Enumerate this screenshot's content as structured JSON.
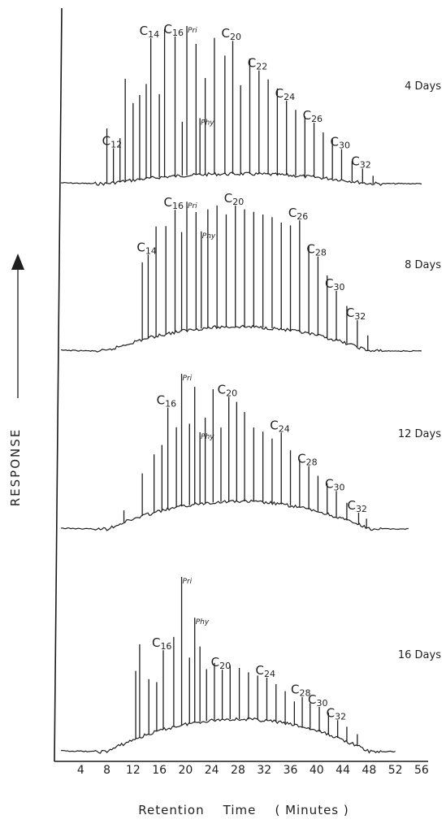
{
  "chart_data": {
    "type": "line",
    "xlabel": "Retention    Time    ( Minutes )",
    "ylabel": "RESPONSE",
    "xlim": [
      0,
      57
    ],
    "x_ticks": [
      4,
      8,
      12,
      16,
      20,
      24,
      28,
      32,
      36,
      40,
      44,
      48,
      52,
      56
    ],
    "panels": [
      {
        "name": "4 Days",
        "peaks": [
          {
            "t": 8.0,
            "h": 0.35
          },
          {
            "t": 9.0,
            "h": 0.22,
            "label": "C12",
            "label_num": "12"
          },
          {
            "t": 10.0,
            "h": 0.28
          },
          {
            "t": 10.8,
            "h": 0.66
          },
          {
            "t": 12.0,
            "h": 0.5
          },
          {
            "t": 13.0,
            "h": 0.55
          },
          {
            "t": 14.0,
            "h": 0.62
          },
          {
            "t": 14.7,
            "h": 0.92,
            "label": "C14",
            "label_num": "14"
          },
          {
            "t": 16.0,
            "h": 0.55
          },
          {
            "t": 16.8,
            "h": 0.98
          },
          {
            "t": 18.4,
            "h": 0.93,
            "label": "C16",
            "label_num": "16"
          },
          {
            "t": 19.5,
            "h": 0.36
          },
          {
            "t": 20.2,
            "h": 1.0,
            "label": "Pri",
            "small": true
          },
          {
            "t": 21.6,
            "h": 0.88
          },
          {
            "t": 22.2,
            "h": 0.38,
            "label": "Phy",
            "small": true
          },
          {
            "t": 23.0,
            "h": 0.65
          },
          {
            "t": 24.4,
            "h": 0.92
          },
          {
            "t": 26.0,
            "h": 0.8
          },
          {
            "t": 27.2,
            "h": 0.9,
            "label": "C20",
            "label_num": "20"
          },
          {
            "t": 28.4,
            "h": 0.6
          },
          {
            "t": 29.8,
            "h": 0.78
          },
          {
            "t": 31.2,
            "h": 0.7,
            "label": "C22",
            "label_num": "22"
          },
          {
            "t": 32.6,
            "h": 0.64
          },
          {
            "t": 34.0,
            "h": 0.58
          },
          {
            "t": 35.4,
            "h": 0.5,
            "label": "C24",
            "label_num": "24"
          },
          {
            "t": 36.8,
            "h": 0.44
          },
          {
            "t": 38.2,
            "h": 0.4
          },
          {
            "t": 39.6,
            "h": 0.36,
            "label": "C26",
            "label_num": "26"
          },
          {
            "t": 41.0,
            "h": 0.3
          },
          {
            "t": 42.4,
            "h": 0.26
          },
          {
            "t": 43.8,
            "h": 0.2,
            "label": "C30",
            "label_num": "30"
          },
          {
            "t": 45.4,
            "h": 0.13
          },
          {
            "t": 47.0,
            "h": 0.09,
            "label": "C32",
            "label_num": "32"
          },
          {
            "t": 48.6,
            "h": 0.05
          }
        ]
      },
      {
        "name": "8 Days",
        "peaks": [
          {
            "t": 13.4,
            "h": 0.55
          },
          {
            "t": 14.3,
            "h": 0.6,
            "label": "C14",
            "label_num": "14"
          },
          {
            "t": 15.5,
            "h": 0.8
          },
          {
            "t": 17.0,
            "h": 0.8
          },
          {
            "t": 18.4,
            "h": 0.92,
            "label": "C16",
            "label_num": "16"
          },
          {
            "t": 19.4,
            "h": 0.75
          },
          {
            "t": 20.2,
            "h": 0.98,
            "label": "Pri",
            "small": true
          },
          {
            "t": 21.6,
            "h": 0.9
          },
          {
            "t": 22.4,
            "h": 0.75,
            "label": "Phy",
            "small": true
          },
          {
            "t": 23.4,
            "h": 0.92
          },
          {
            "t": 24.8,
            "h": 0.95
          },
          {
            "t": 26.2,
            "h": 0.88
          },
          {
            "t": 27.6,
            "h": 0.95,
            "label": "C20",
            "label_num": "20"
          },
          {
            "t": 29.0,
            "h": 0.92
          },
          {
            "t": 30.4,
            "h": 0.9
          },
          {
            "t": 31.8,
            "h": 0.88
          },
          {
            "t": 33.2,
            "h": 0.86
          },
          {
            "t": 34.6,
            "h": 0.82
          },
          {
            "t": 36.0,
            "h": 0.8
          },
          {
            "t": 37.4,
            "h": 0.84,
            "label": "C26",
            "label_num": "26"
          },
          {
            "t": 38.8,
            "h": 0.65
          },
          {
            "t": 40.2,
            "h": 0.58,
            "label": "C28",
            "label_num": "28"
          },
          {
            "t": 41.6,
            "h": 0.45
          },
          {
            "t": 43.0,
            "h": 0.35,
            "label": "C30",
            "label_num": "30"
          },
          {
            "t": 44.6,
            "h": 0.26
          },
          {
            "t": 46.2,
            "h": 0.18,
            "label": "C32",
            "label_num": "32"
          },
          {
            "t": 47.8,
            "h": 0.1
          }
        ]
      },
      {
        "name": "12 Days",
        "peaks": [
          {
            "t": 10.6,
            "h": 0.08
          },
          {
            "t": 13.4,
            "h": 0.3
          },
          {
            "t": 15.2,
            "h": 0.42
          },
          {
            "t": 16.4,
            "h": 0.48
          },
          {
            "t": 17.3,
            "h": 0.75,
            "label": "C16",
            "label_num": "16"
          },
          {
            "t": 18.6,
            "h": 0.6
          },
          {
            "t": 19.4,
            "h": 1.0,
            "label": "Pri",
            "small": true
          },
          {
            "t": 20.6,
            "h": 0.62
          },
          {
            "t": 21.4,
            "h": 0.9
          },
          {
            "t": 22.2,
            "h": 0.55,
            "label": "Phy",
            "small": true
          },
          {
            "t": 23.0,
            "h": 0.66
          },
          {
            "t": 24.2,
            "h": 0.88
          },
          {
            "t": 25.4,
            "h": 0.58
          },
          {
            "t": 26.6,
            "h": 0.82,
            "label": "C20",
            "label_num": "20"
          },
          {
            "t": 27.8,
            "h": 0.78
          },
          {
            "t": 29.0,
            "h": 0.7
          },
          {
            "t": 30.4,
            "h": 0.58
          },
          {
            "t": 31.8,
            "h": 0.55
          },
          {
            "t": 33.2,
            "h": 0.5
          },
          {
            "t": 34.6,
            "h": 0.55,
            "label": "C24",
            "label_num": "24"
          },
          {
            "t": 36.0,
            "h": 0.42
          },
          {
            "t": 37.4,
            "h": 0.36
          },
          {
            "t": 38.8,
            "h": 0.32,
            "label": "C28",
            "label_num": "28"
          },
          {
            "t": 40.2,
            "h": 0.26
          },
          {
            "t": 41.6,
            "h": 0.22
          },
          {
            "t": 43.0,
            "h": 0.18,
            "label": "C30",
            "label_num": "30"
          },
          {
            "t": 44.6,
            "h": 0.12
          },
          {
            "t": 46.4,
            "h": 0.08,
            "label": "C32",
            "label_num": "32"
          },
          {
            "t": 47.6,
            "h": 0.06
          }
        ]
      },
      {
        "name": "16 Days",
        "peaks": [
          {
            "t": 12.4,
            "h": 0.42
          },
          {
            "t": 13.0,
            "h": 0.58
          },
          {
            "t": 14.4,
            "h": 0.35
          },
          {
            "t": 15.6,
            "h": 0.32
          },
          {
            "t": 16.6,
            "h": 0.52,
            "label": "C16",
            "label_num": "16"
          },
          {
            "t": 18.2,
            "h": 0.6
          },
          {
            "t": 19.4,
            "h": 1.0,
            "label": "Pri",
            "small": true
          },
          {
            "t": 20.6,
            "h": 0.45
          },
          {
            "t": 21.4,
            "h": 0.72,
            "label": "Phy",
            "small": true
          },
          {
            "t": 22.2,
            "h": 0.52
          },
          {
            "t": 23.2,
            "h": 0.36
          },
          {
            "t": 24.4,
            "h": 0.4
          },
          {
            "t": 25.6,
            "h": 0.35,
            "label": "C20",
            "label_num": "20"
          },
          {
            "t": 26.8,
            "h": 0.38
          },
          {
            "t": 28.2,
            "h": 0.36
          },
          {
            "t": 29.6,
            "h": 0.33
          },
          {
            "t": 31.0,
            "h": 0.31
          },
          {
            "t": 32.4,
            "h": 0.3,
            "label": "C24",
            "label_num": "24"
          },
          {
            "t": 33.8,
            "h": 0.26
          },
          {
            "t": 35.2,
            "h": 0.22
          },
          {
            "t": 36.6,
            "h": 0.16
          },
          {
            "t": 37.8,
            "h": 0.2,
            "label": "C28",
            "label_num": "28"
          },
          {
            "t": 39.0,
            "h": 0.17
          },
          {
            "t": 40.4,
            "h": 0.16,
            "label": "C30",
            "label_num": "30"
          },
          {
            "t": 41.8,
            "h": 0.14
          },
          {
            "t": 43.2,
            "h": 0.11,
            "label": "C32",
            "label_num": "32"
          },
          {
            "t": 44.6,
            "h": 0.09
          },
          {
            "t": 46.2,
            "h": 0.07
          }
        ]
      }
    ]
  }
}
